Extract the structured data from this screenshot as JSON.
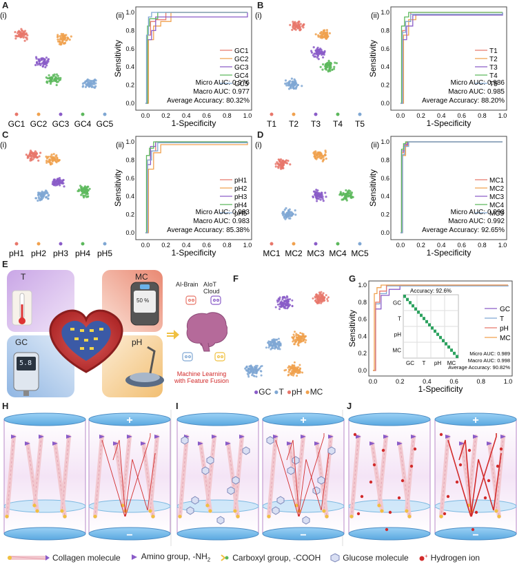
{
  "panel_labels": {
    "A": "A",
    "B": "B",
    "C": "C",
    "D": "D",
    "E": "E",
    "F": "F",
    "G": "G",
    "H": "H",
    "I": "I",
    "J": "J"
  },
  "sub_labels": {
    "i": "(i)",
    "ii": "(ii)"
  },
  "axes": {
    "xlabel": "1-Specificity",
    "ylabel": "Sensitivity",
    "ticks": [
      "0.0",
      "0.2",
      "0.4",
      "0.6",
      "0.8",
      "1.0"
    ]
  },
  "roc_panels": [
    {
      "key": "A",
      "classes": [
        "GC1",
        "GC2",
        "GC3",
        "GC4",
        "GC5"
      ],
      "micro": "Micro AUC: 0.976",
      "macro": "Macro AUC: 0.977",
      "acc": "Average Accuracy: 80.32%"
    },
    {
      "key": "B",
      "classes": [
        "T1",
        "T2",
        "T3",
        "T4",
        "T5"
      ],
      "micro": "Micro AUC: 0.986",
      "macro": "Macro AUC: 0.985",
      "acc": "Average Accuracy: 88.20%"
    },
    {
      "key": "C",
      "classes": [
        "pH1",
        "pH2",
        "pH3",
        "pH4",
        "pH5"
      ],
      "micro": "Micro AUC: 0.983",
      "macro": "Macro AUC: 0.983",
      "acc": "Average Accuracy: 85.38%"
    },
    {
      "key": "D",
      "classes": [
        "MC1",
        "MC2",
        "MC3",
        "MC4",
        "MC5"
      ],
      "micro": "Micro AUC: 0.993",
      "macro": "Macro AUC: 0.992",
      "acc": "Average Accuracy: 92.65%"
    }
  ],
  "colors": {
    "c1": "#e8776b",
    "c2": "#f0a14e",
    "c3": "#8a5cc8",
    "c4": "#5cb85c",
    "c5": "#7fa7d3",
    "accent_red": "#d22b2b"
  },
  "panel_E": {
    "T": "T",
    "MC": "MC",
    "GC": "GC",
    "pH": "pH",
    "mc_value": "50 %",
    "gc_value": "5.8",
    "ai_brain": "AI-Brain",
    "aiot_cloud": "AIoT Cloud",
    "ml_line1": "Machine Learning",
    "ml_line2": "with Feature Fusion"
  },
  "panel_F": {
    "legend": [
      "GC",
      "T",
      "pH",
      "MC"
    ]
  },
  "panel_G": {
    "series": [
      "GC",
      "T",
      "pH",
      "MC"
    ],
    "accuracy": "Accuracy: 92.6%",
    "cm_labels": [
      "GC",
      "T",
      "pH",
      "MC"
    ],
    "micro": "Micro AUC: 0.989",
    "macro": "Macro AUC: 0.998",
    "acc": "Average Accuracy: 90.82%",
    "ticks": [
      "0.0",
      "0.2",
      "0.4",
      "0.6",
      "0.8",
      "1.0"
    ]
  },
  "bottom_legend": {
    "collagen": "Collagen molecule",
    "amino": "Amino group, -NH",
    "amino_sub": "2",
    "carboxyl": "Carboxyl group, -COOH",
    "glucose": "Glucose molecule",
    "hydrogen": "Hydrogen ion"
  },
  "chart_data": [
    {
      "type": "line",
      "panel": "A(ii)",
      "xlabel": "1-Specificity",
      "ylabel": "Sensitivity",
      "xlim": [
        0,
        1
      ],
      "ylim": [
        0,
        1
      ],
      "series": [
        {
          "name": "GC1",
          "x": [
            0,
            0.02,
            0.05,
            0.1,
            0.2,
            1.0
          ],
          "y": [
            0,
            0.75,
            0.9,
            0.92,
            1.0,
            1.0
          ]
        },
        {
          "name": "GC2",
          "x": [
            0,
            0.03,
            0.08,
            0.15,
            0.25,
            1.0
          ],
          "y": [
            0,
            0.7,
            0.85,
            0.9,
            1.0,
            1.0
          ]
        },
        {
          "name": "GC3",
          "x": [
            0,
            0.02,
            0.06,
            0.1,
            1.0
          ],
          "y": [
            0,
            0.7,
            0.8,
            0.95,
            1.0
          ]
        },
        {
          "name": "GC4",
          "x": [
            0,
            0.02,
            0.04,
            0.12,
            1.0
          ],
          "y": [
            0,
            0.85,
            0.93,
            1.0,
            1.0
          ]
        },
        {
          "name": "GC5",
          "x": [
            0,
            0.01,
            0.03,
            0.06,
            1.0
          ],
          "y": [
            0,
            0.75,
            0.95,
            1.0,
            1.0
          ]
        }
      ]
    },
    {
      "type": "line",
      "panel": "B(ii)",
      "xlabel": "1-Specificity",
      "ylabel": "Sensitivity",
      "xlim": [
        0,
        1
      ],
      "ylim": [
        0,
        1
      ],
      "series": [
        {
          "name": "T1",
          "x": [
            0,
            0.02,
            0.05,
            0.1,
            1.0
          ],
          "y": [
            0,
            0.8,
            0.9,
            1.0,
            1.0
          ]
        },
        {
          "name": "T2",
          "x": [
            0,
            0.03,
            0.08,
            0.15,
            1.0
          ],
          "y": [
            0,
            0.75,
            0.92,
            0.98,
            1.0
          ]
        },
        {
          "name": "T3",
          "x": [
            0,
            0.02,
            0.06,
            0.12,
            1.0
          ],
          "y": [
            0,
            0.7,
            0.85,
            0.97,
            1.0
          ]
        },
        {
          "name": "T4",
          "x": [
            0,
            0.01,
            0.04,
            0.08,
            1.0
          ],
          "y": [
            0,
            0.85,
            0.95,
            1.0,
            1.0
          ]
        },
        {
          "name": "T5",
          "x": [
            0,
            0.02,
            0.05,
            0.1,
            1.0
          ],
          "y": [
            0,
            0.78,
            0.9,
            0.98,
            1.0
          ]
        }
      ]
    },
    {
      "type": "line",
      "panel": "C(ii)",
      "xlabel": "1-Specificity",
      "ylabel": "Sensitivity",
      "xlim": [
        0,
        1
      ],
      "ylim": [
        0,
        1
      ],
      "series": [
        {
          "name": "pH1",
          "x": [
            0,
            0.02,
            0.05,
            0.1,
            1.0
          ],
          "y": [
            0,
            0.8,
            0.9,
            1.0,
            1.0
          ]
        },
        {
          "name": "pH2",
          "x": [
            0,
            0.03,
            0.08,
            0.15,
            1.0
          ],
          "y": [
            0,
            0.7,
            0.88,
            0.97,
            1.0
          ]
        },
        {
          "name": "pH3",
          "x": [
            0,
            0.02,
            0.05,
            0.1,
            1.0
          ],
          "y": [
            0,
            0.75,
            0.95,
            1.0,
            1.0
          ]
        },
        {
          "name": "pH4",
          "x": [
            0,
            0.01,
            0.04,
            0.08,
            1.0
          ],
          "y": [
            0,
            0.85,
            0.93,
            1.0,
            1.0
          ]
        },
        {
          "name": "pH5",
          "x": [
            0,
            0.02,
            0.06,
            0.12,
            1.0
          ],
          "y": [
            0,
            0.8,
            0.9,
            0.99,
            1.0
          ]
        }
      ]
    },
    {
      "type": "line",
      "panel": "D(ii)",
      "xlabel": "1-Specificity",
      "ylabel": "Sensitivity",
      "xlim": [
        0,
        1
      ],
      "ylim": [
        0,
        1
      ],
      "series": [
        {
          "name": "MC1",
          "x": [
            0,
            0.01,
            0.03,
            0.06,
            1.0
          ],
          "y": [
            0,
            0.88,
            0.95,
            1.0,
            1.0
          ]
        },
        {
          "name": "MC2",
          "x": [
            0,
            0.02,
            0.05,
            0.08,
            1.0
          ],
          "y": [
            0,
            0.85,
            0.96,
            1.0,
            1.0
          ]
        },
        {
          "name": "MC3",
          "x": [
            0,
            0.01,
            0.04,
            0.07,
            1.0
          ],
          "y": [
            0,
            0.9,
            0.97,
            1.0,
            1.0
          ]
        },
        {
          "name": "MC4",
          "x": [
            0,
            0.01,
            0.03,
            0.05,
            1.0
          ],
          "y": [
            0,
            0.92,
            0.98,
            1.0,
            1.0
          ]
        },
        {
          "name": "MC5",
          "x": [
            0,
            0.02,
            0.04,
            0.08,
            1.0
          ],
          "y": [
            0,
            0.86,
            0.95,
            1.0,
            1.0
          ]
        }
      ]
    },
    {
      "type": "line",
      "panel": "G",
      "xlabel": "1-Specificity",
      "ylabel": "Sensitivity",
      "xlim": [
        0,
        1
      ],
      "ylim": [
        0,
        1
      ],
      "series": [
        {
          "name": "GC",
          "x": [
            0,
            0.02,
            0.06,
            0.12,
            0.2,
            1.0
          ],
          "y": [
            0,
            0.72,
            0.88,
            0.95,
            1.0,
            1.0
          ]
        },
        {
          "name": "T",
          "x": [
            0,
            0.02,
            0.05,
            0.1,
            1.0
          ],
          "y": [
            0,
            0.78,
            0.9,
            0.99,
            1.0
          ]
        },
        {
          "name": "pH",
          "x": [
            0,
            0.02,
            0.05,
            0.1,
            1.0
          ],
          "y": [
            0,
            0.8,
            0.93,
            1.0,
            1.0
          ]
        },
        {
          "name": "MC",
          "x": [
            0,
            0.01,
            0.03,
            0.06,
            1.0
          ],
          "y": [
            0,
            0.9,
            0.97,
            1.0,
            1.0
          ]
        }
      ]
    }
  ]
}
